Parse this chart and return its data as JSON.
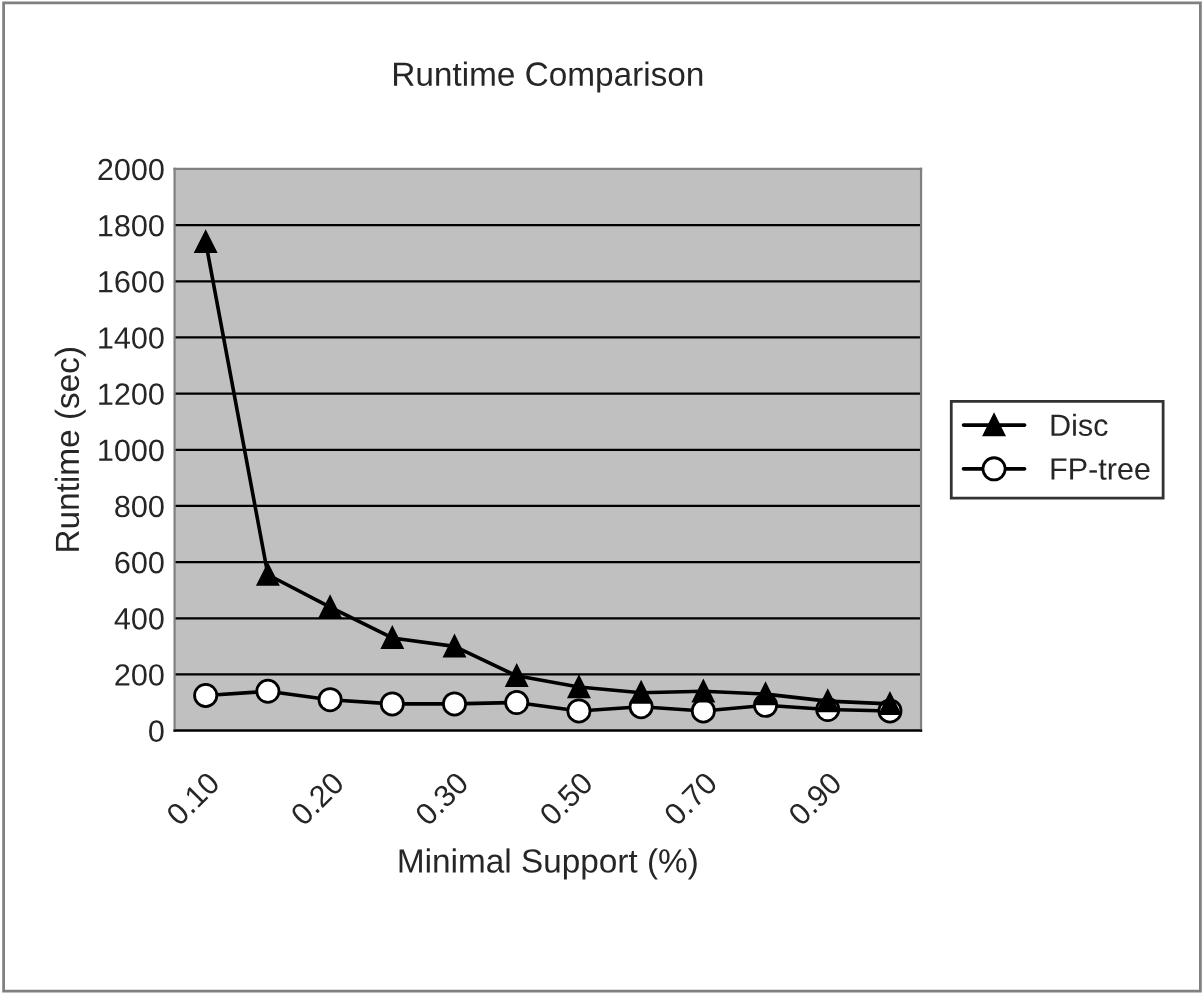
{
  "chart_data": {
    "type": "line",
    "title": "Runtime Comparison",
    "xlabel": "Minimal Support (%)",
    "ylabel": "Runtime (sec)",
    "categories": [
      "0.10",
      null,
      "0.20",
      null,
      "0.30",
      null,
      "0.50",
      null,
      "0.70",
      null,
      "0.90",
      null
    ],
    "series": [
      {
        "name": "Disc",
        "color": "#000000",
        "marker": "triangle",
        "values": [
          1740,
          555,
          440,
          330,
          300,
          195,
          155,
          135,
          140,
          130,
          105,
          95
        ]
      },
      {
        "name": "FP-tree",
        "color": "#000000",
        "marker": "circle",
        "values": [
          125,
          140,
          110,
          95,
          95,
          100,
          70,
          85,
          70,
          90,
          75,
          70
        ]
      }
    ],
    "ylim": [
      0,
      2000
    ],
    "yticks": [
      0,
      200,
      400,
      600,
      800,
      1000,
      1200,
      1400,
      1600,
      1800,
      2000
    ],
    "grid": "y",
    "legend": "right"
  }
}
